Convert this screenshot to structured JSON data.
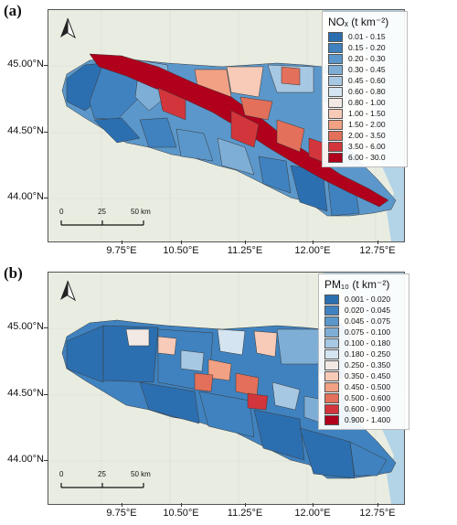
{
  "panels": [
    {
      "label": "(a)",
      "legend_title": "NOₓ (t km⁻²)",
      "classes": [
        {
          "range": "0.01 - 0.15",
          "color": "#2c6fb0"
        },
        {
          "range": "0.15 - 0.20",
          "color": "#3f82bf"
        },
        {
          "range": "0.20 - 0.30",
          "color": "#5b97ca"
        },
        {
          "range": "0.30 - 0.45",
          "color": "#7eaed6"
        },
        {
          "range": "0.45 - 0.60",
          "color": "#a7c8e3"
        },
        {
          "range": "0.60 - 0.80",
          "color": "#d4e4f0"
        },
        {
          "range": "0.80 - 1.00",
          "color": "#f2e9e4"
        },
        {
          "range": "1.00 - 1.50",
          "color": "#f7cbb8"
        },
        {
          "range": "1.50 - 2.00",
          "color": "#f2a184"
        },
        {
          "range": "2.00 - 3.50",
          "color": "#e3705a"
        },
        {
          "range": "3.50 - 6.00",
          "color": "#d2353b"
        },
        {
          "range": "6.00 - 30.0",
          "color": "#b0001c"
        }
      ],
      "lat_labels": [
        "45.00°N",
        "44.50°N",
        "44.00°N"
      ],
      "lon_labels": [
        "9.75°E",
        "10.50°E",
        "11.25°E",
        "12.00°E",
        "12.75°E"
      ],
      "scalebar": {
        "ticks": [
          "0",
          "25",
          "50 km"
        ]
      }
    },
    {
      "label": "(b)",
      "legend_title": "PM₁₀ (t km⁻²)",
      "classes": [
        {
          "range": "0.001 - 0.020",
          "color": "#2c6fb0"
        },
        {
          "range": "0.020 - 0.045",
          "color": "#3f82bf"
        },
        {
          "range": "0.045 - 0.075",
          "color": "#5b97ca"
        },
        {
          "range": "0.075 - 0.100",
          "color": "#7eaed6"
        },
        {
          "range": "0.100 - 0.180",
          "color": "#a7c8e3"
        },
        {
          "range": "0.180 - 0.250",
          "color": "#d4e4f0"
        },
        {
          "range": "0.250 - 0.350",
          "color": "#f2e9e4"
        },
        {
          "range": "0.350 - 0.450",
          "color": "#f7cbb8"
        },
        {
          "range": "0.450 - 0.500",
          "color": "#f2a184"
        },
        {
          "range": "0.500 - 0.600",
          "color": "#e3705a"
        },
        {
          "range": "0.600 - 0.900",
          "color": "#d2353b"
        },
        {
          "range": "0.900 - 1.400",
          "color": "#b0001c"
        }
      ],
      "lat_labels": [
        "45.00°N",
        "44.50°N",
        "44.00°N"
      ],
      "lon_labels": [
        "9.75°E",
        "10.50°E",
        "11.25°E",
        "12.00°E",
        "12.75°E"
      ],
      "scalebar": {
        "ticks": [
          "0",
          "25",
          "50 km"
        ]
      }
    }
  ],
  "map_colors": {
    "land": "#e8ede0",
    "sea": "#b3d3e6",
    "region_border": "#3a3a3a"
  }
}
